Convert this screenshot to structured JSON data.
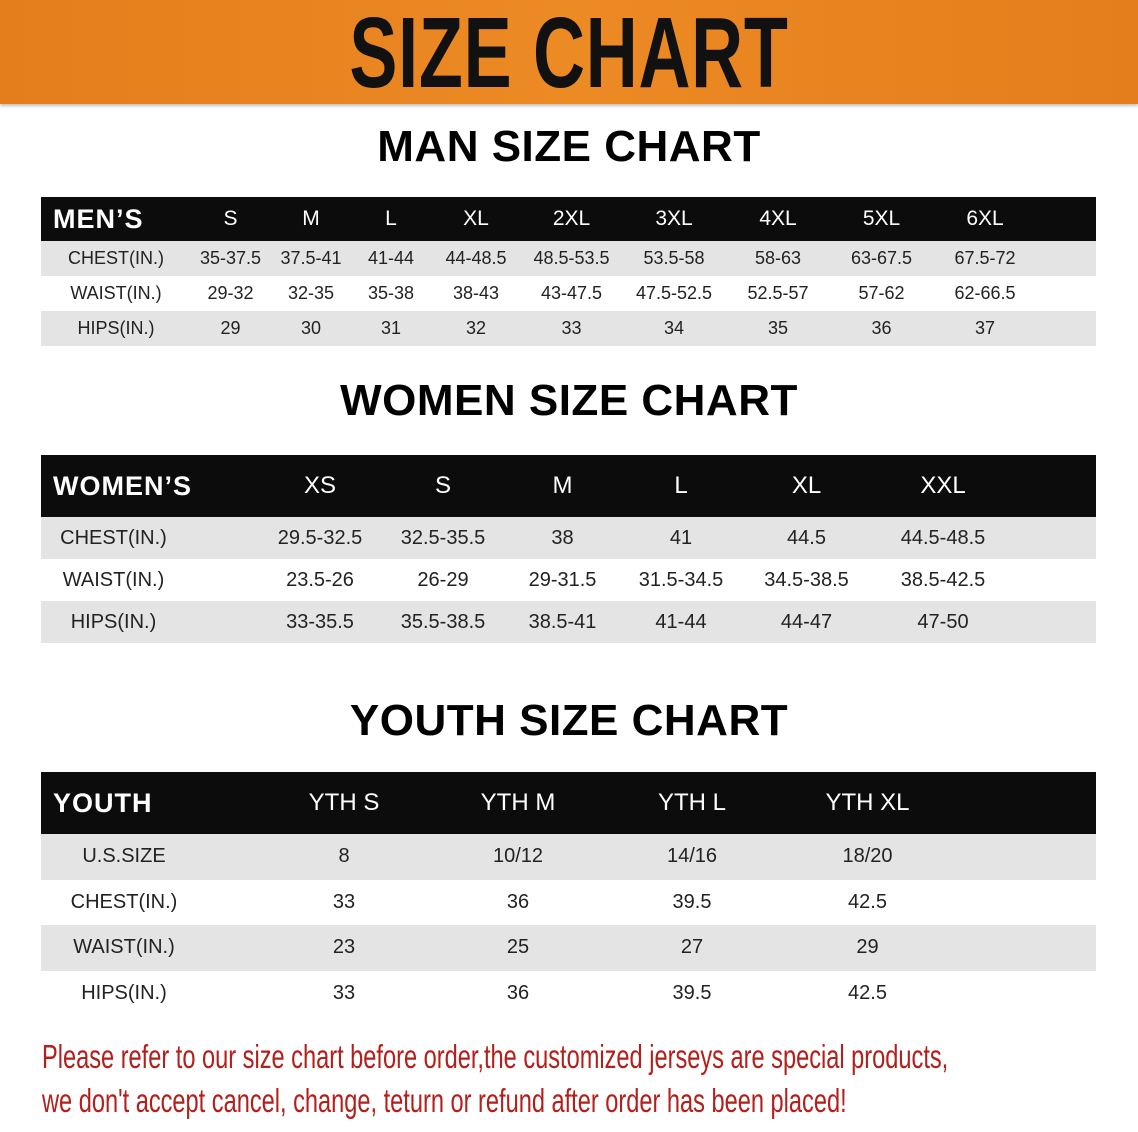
{
  "banner_title": "SIZE CHART",
  "men": {
    "title": "MAN SIZE CHART",
    "header": [
      "MEN’S",
      "S",
      "M",
      "L",
      "XL",
      "2XL",
      "3XL",
      "4XL",
      "5XL",
      "6XL"
    ],
    "rows": [
      [
        "CHEST(IN.)",
        "35-37.5",
        "37.5-41",
        "41-44",
        "44-48.5",
        "48.5-53.5",
        "53.5-58",
        "58-63",
        "63-67.5",
        "67.5-72"
      ],
      [
        "WAIST(IN.)",
        "29-32",
        "32-35",
        "35-38",
        "38-43",
        "43-47.5",
        "47.5-52.5",
        "52.5-57",
        "57-62",
        "62-66.5"
      ],
      [
        "HIPS(IN.)",
        "29",
        "30",
        "31",
        "32",
        "33",
        "34",
        "35",
        "36",
        "37"
      ]
    ]
  },
  "women": {
    "title": "WOMEN SIZE CHART",
    "header": [
      "WOMEN’S",
      "XS",
      "S",
      "M",
      "L",
      "XL",
      "XXL"
    ],
    "rows": [
      [
        "CHEST(IN.)",
        "29.5-32.5",
        "32.5-35.5",
        "38",
        "41",
        "44.5",
        "44.5-48.5"
      ],
      [
        "WAIST(IN.)",
        "23.5-26",
        "26-29",
        "29-31.5",
        "31.5-34.5",
        "34.5-38.5",
        "38.5-42.5"
      ],
      [
        "HIPS(IN.)",
        "33-35.5",
        "35.5-38.5",
        "38.5-41",
        "41-44",
        "44-47",
        "47-50"
      ]
    ]
  },
  "youth": {
    "title": "YOUTH SIZE CHART",
    "header": [
      "YOUTH",
      "YTH S",
      "YTH M",
      "YTH L",
      "YTH XL"
    ],
    "rows": [
      [
        "U.S.SIZE",
        "8",
        "10/12",
        "14/16",
        "18/20"
      ],
      [
        "CHEST(IN.)",
        "33",
        "36",
        "39.5",
        "42.5"
      ],
      [
        "WAIST(IN.)",
        "23",
        "25",
        "27",
        "29"
      ],
      [
        "HIPS(IN.)",
        "33",
        "36",
        "39.5",
        "42.5"
      ]
    ]
  },
  "note": {
    "line1": "Please refer to our size chart before order,the customized jerseys are special products,",
    "line2": "we don't accept cancel, change, teturn or refund after order has been placed!"
  },
  "colors": {
    "banner": "#e8821e",
    "note": "#b3201c",
    "header_row": "#0c0c0c",
    "stripe": "#e4e4e4"
  }
}
